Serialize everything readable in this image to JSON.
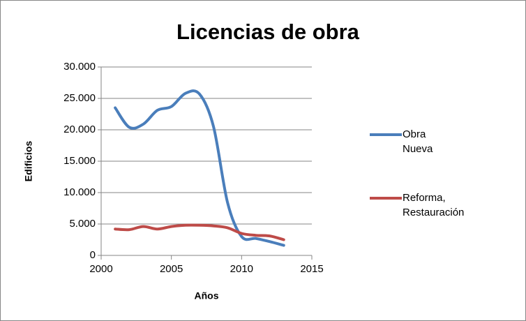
{
  "chart_data": {
    "type": "line",
    "title": "Licencias de obra",
    "x_label": "Años",
    "y_label": "Edificios",
    "x": [
      2001,
      2002,
      2003,
      2004,
      2005,
      2006,
      2007,
      2008,
      2009,
      2010,
      2011,
      2012,
      2013
    ],
    "series": [
      {
        "name": "Obra Nueva",
        "color": "#4a7ebb",
        "values": [
          23500,
          20400,
          20900,
          23100,
          23700,
          25800,
          25700,
          20500,
          8400,
          3000,
          2700,
          2200,
          1600
        ]
      },
      {
        "name": "Reforma, Restauración",
        "color": "#be4b48",
        "values": [
          4200,
          4100,
          4600,
          4200,
          4600,
          4800,
          4800,
          4700,
          4400,
          3500,
          3200,
          3100,
          2500
        ]
      }
    ],
    "xlim": [
      2000,
      2015
    ],
    "xticks": [
      2000,
      2005,
      2010,
      2015
    ],
    "ylim": [
      0,
      30000
    ],
    "yticks": [
      {
        "value": 0,
        "label": "0"
      },
      {
        "value": 5000,
        "label": "5.000"
      },
      {
        "value": 10000,
        "label": "10.000"
      },
      {
        "value": 15000,
        "label": "15.000"
      },
      {
        "value": 20000,
        "label": "20.000"
      },
      {
        "value": 25000,
        "label": "25.000"
      },
      {
        "value": 30000,
        "label": "30.000"
      }
    ],
    "grid": true,
    "legend": "right"
  }
}
